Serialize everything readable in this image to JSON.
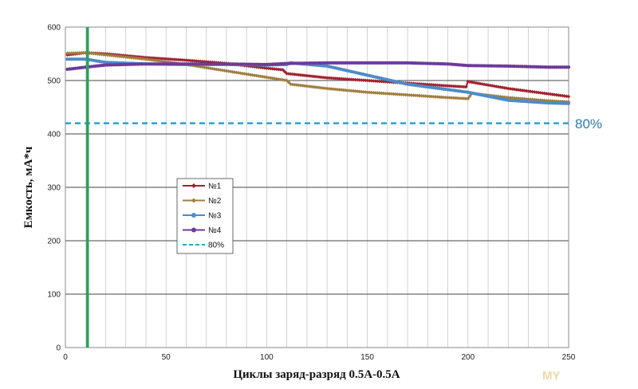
{
  "chart_data": {
    "type": "line",
    "xlabel": "Циклы заряд-разряд  0.5А-0.5А",
    "ylabel": "Емкость, мА*ч",
    "xlim": [
      0,
      250
    ],
    "ylim": [
      0,
      600
    ],
    "xticks": [
      0,
      50,
      100,
      150,
      200,
      250
    ],
    "yticks": [
      0,
      100,
      200,
      300,
      400,
      500,
      600
    ],
    "x_minor_step": 10,
    "grid": true,
    "legend_placement": "center-left",
    "series": [
      {
        "name": "№1",
        "color": "#a0222f",
        "marker": "diamond",
        "x": [
          1,
          10,
          20,
          40,
          60,
          80,
          100,
          108,
          110,
          130,
          150,
          170,
          190,
          199,
          200,
          220,
          240,
          250
        ],
        "y": [
          548,
          552,
          550,
          543,
          538,
          532,
          523,
          520,
          513,
          505,
          500,
          495,
          490,
          488,
          498,
          485,
          475,
          470
        ]
      },
      {
        "name": "№2",
        "color": "#a07e3f",
        "marker": "diamond",
        "x": [
          1,
          10,
          20,
          40,
          60,
          80,
          100,
          110,
          112,
          130,
          150,
          170,
          190,
          200,
          202,
          220,
          240,
          250
        ],
        "y": [
          551,
          552,
          548,
          540,
          530,
          518,
          506,
          500,
          493,
          485,
          478,
          473,
          468,
          466,
          476,
          468,
          462,
          460
        ]
      },
      {
        "name": "№3",
        "color": "#4d8bc9",
        "marker": "circle",
        "x": [
          1,
          10,
          20,
          40,
          60,
          80,
          100,
          110,
          112,
          130,
          150,
          170,
          190,
          200,
          220,
          240,
          250
        ],
        "y": [
          540,
          540,
          534,
          531,
          530,
          530,
          529,
          530,
          533,
          527,
          510,
          493,
          483,
          478,
          463,
          458,
          457
        ]
      },
      {
        "name": "№4",
        "color": "#6e3a9a",
        "marker": "circle",
        "x": [
          1,
          10,
          20,
          40,
          60,
          80,
          100,
          110,
          130,
          150,
          170,
          190,
          200,
          220,
          240,
          250
        ],
        "y": [
          521,
          525,
          529,
          531,
          531,
          531,
          530,
          532,
          533,
          533,
          533,
          531,
          528,
          527,
          525,
          525
        ]
      }
    ],
    "vertical_line": {
      "x": 11,
      "color": "#27a35b"
    },
    "reference_line": {
      "name": "80%",
      "y": 420,
      "color": "#2aa0d6",
      "label": "80%",
      "label_color": "#2f78b3"
    }
  },
  "watermark": "MY"
}
